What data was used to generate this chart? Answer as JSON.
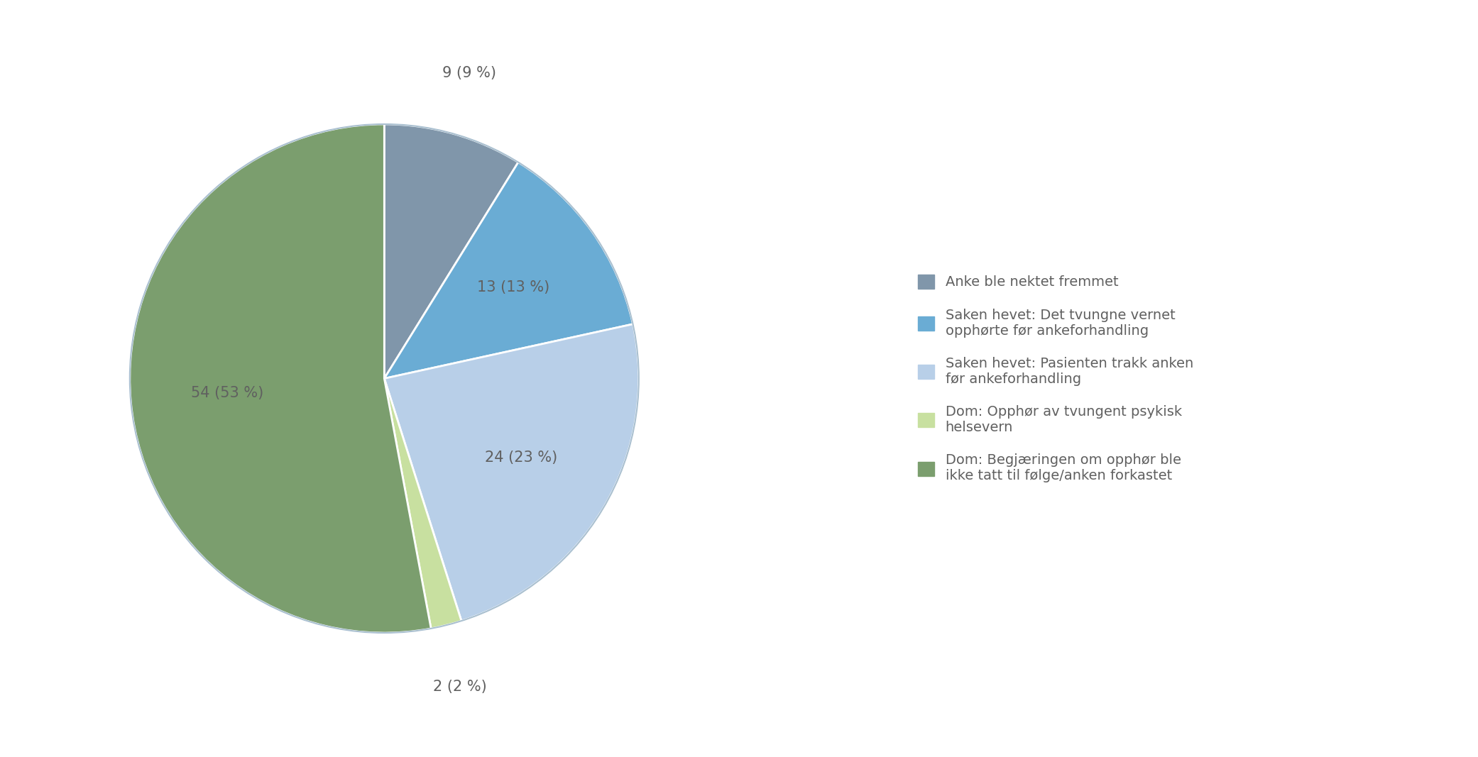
{
  "values": [
    9,
    13,
    24,
    2,
    54
  ],
  "colors": [
    "#8096aa",
    "#6aacd4",
    "#b8cfe8",
    "#c8e0a0",
    "#7b9e6e"
  ],
  "edge_color": "#5a8ab0",
  "autopct_labels": [
    "9 (9 %)",
    "13 (13 %)",
    "24 (23 %)",
    "2 (2 %)",
    "54 (53 %)"
  ],
  "legend_labels": [
    "Anke ble nektet fremmet",
    "Saken hevet: Det tvungne vernet\nopphørte før ankeforhandling",
    "Saken hevet: Pasienten trakk anken\nfør ankeforhandling",
    "Dom: Opphør av tvungent psykisk\nhelsevern",
    "Dom: Begjæringen om opphør ble\nikke tatt til følge/anken forkastet"
  ],
  "text_color": "#606060",
  "background_color": "#ffffff",
  "startangle": 90,
  "wedge_edgecolor": "#ffffff",
  "wedge_linewidth": 2.0,
  "label_fontsize": 15,
  "legend_fontsize": 14
}
